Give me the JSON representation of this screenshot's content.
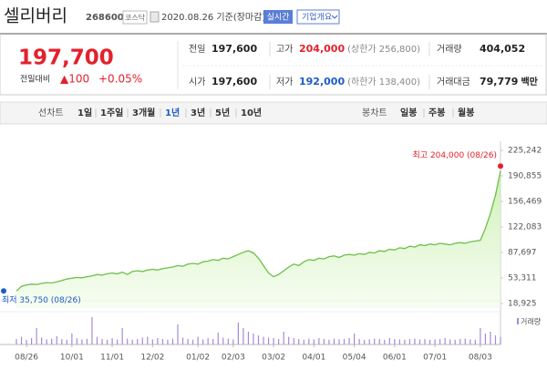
{
  "header": {
    "name": "셀리버리",
    "code": "268600",
    "market": "코스닥",
    "date": "2020.08.26 기준(장마감)",
    "realtime": "실시간",
    "company": "기업개요"
  },
  "quote": {
    "price": "197,700",
    "change_label": "전일대비",
    "change": "▲100",
    "change_pct": "+0.05%",
    "rows": [
      [
        {
          "label": "전일",
          "value": "197,600"
        },
        {
          "label": "고가",
          "value": "204,000",
          "note": "(상한가 256,800)"
        },
        {
          "label": "거래량",
          "value": "404,052"
        }
      ],
      [
        {
          "label": "시가",
          "value": "197,600"
        },
        {
          "label": "저가",
          "value": "192,000",
          "note": "(하한가 138,400)"
        },
        {
          "label": "거래대금",
          "value": "79,779",
          "unit": "백만"
        }
      ]
    ]
  },
  "tabs": {
    "line_label": "선차트",
    "line": [
      "1일",
      "1주일",
      "3개월",
      "1년",
      "3년",
      "5년",
      "10년"
    ],
    "selected": 3,
    "candle_label": "봉차트",
    "candle": [
      "일봉",
      "주봉",
      "월봉"
    ]
  },
  "chart_data": {
    "type": "line",
    "color": "#6cc04a",
    "categories": [
      null,
      null,
      "08/26",
      null,
      null,
      null,
      null,
      null,
      null,
      null,
      null,
      "10/01",
      null,
      null,
      null,
      null,
      null,
      null,
      null,
      "11/01",
      null,
      null,
      null,
      null,
      null,
      null,
      null,
      "12/02",
      null,
      null,
      null,
      null,
      null,
      null,
      null,
      null,
      "01/02",
      null,
      null,
      null,
      null,
      null,
      null,
      "02/03",
      null,
      null,
      null,
      null,
      null,
      null,
      null,
      "03/02",
      null,
      null,
      null,
      null,
      null,
      null,
      null,
      "04/01",
      null,
      null,
      null,
      null,
      null,
      null,
      null,
      "05/04",
      null,
      null,
      null,
      null,
      null,
      null,
      null,
      "06/01",
      null,
      null,
      null,
      null,
      null,
      null,
      null,
      "07/01",
      null,
      null,
      null,
      null,
      null,
      null,
      null,
      null,
      "08/03",
      null,
      null,
      null,
      null
    ],
    "values": [
      35750,
      42000,
      44000,
      45000,
      44500,
      46000,
      47000,
      46500,
      48000,
      50000,
      52000,
      53000,
      54000,
      53500,
      55000,
      56000,
      58000,
      57000,
      59000,
      60000,
      59000,
      61000,
      58000,
      62000,
      63000,
      62000,
      64000,
      65000,
      64000,
      66000,
      67000,
      68000,
      70000,
      69000,
      72000,
      73000,
      72000,
      75000,
      76000,
      78000,
      77000,
      80000,
      79000,
      82000,
      85000,
      88000,
      90000,
      87000,
      80000,
      70000,
      60000,
      55000,
      58000,
      63000,
      68000,
      72000,
      70000,
      75000,
      78000,
      77000,
      80000,
      79000,
      82000,
      83000,
      81000,
      84000,
      85000,
      84000,
      86000,
      85000,
      88000,
      87000,
      90000,
      89000,
      92000,
      91000,
      94000,
      93000,
      96000,
      95000,
      98000,
      97000,
      99000,
      98000,
      100000,
      99000,
      98000,
      100000,
      101000,
      100000,
      102000,
      103000,
      104000,
      120000,
      140000,
      165000,
      197700
    ],
    "ylim": [
      18925,
      225242
    ],
    "yticks": [
      {
        "value": 18925,
        "label": "18,925"
      },
      {
        "value": 53311,
        "label": "53,311"
      },
      {
        "value": 87697,
        "label": "87,697"
      },
      {
        "value": 122083,
        "label": "122,083"
      },
      {
        "value": 156469,
        "label": "156,469"
      },
      {
        "value": 190855,
        "label": "190,855"
      },
      {
        "value": 225242,
        "label": "225,242"
      }
    ],
    "high": {
      "label": "최고 204,000 (08/26)",
      "value": 204000
    },
    "low": {
      "label": "최저 35,750 (08/26)",
      "value": 35750
    },
    "volume": {
      "name": "거래량",
      "color": "#a58bd8",
      "values": [
        300,
        420,
        260,
        350,
        900,
        380,
        280,
        320,
        450,
        300,
        260,
        600,
        340,
        280,
        310,
        1500,
        420,
        300,
        260,
        350,
        280,
        900,
        320,
        260,
        300,
        380,
        420,
        280,
        350,
        300,
        260,
        320,
        1100,
        380,
        300,
        260,
        420,
        280,
        350,
        300,
        650,
        380,
        320,
        280,
        1200,
        900,
        700,
        600,
        500,
        420,
        380,
        350,
        300,
        700,
        420,
        350,
        300,
        260,
        320,
        280,
        350,
        300,
        260,
        320,
        280,
        300,
        350,
        600,
        300,
        260,
        280,
        320,
        300,
        260,
        350,
        300,
        280,
        260,
        300,
        320,
        280,
        300,
        260,
        280,
        300,
        350,
        280,
        260,
        300,
        320,
        280,
        260,
        900,
        600,
        700,
        500,
        420
      ]
    }
  }
}
